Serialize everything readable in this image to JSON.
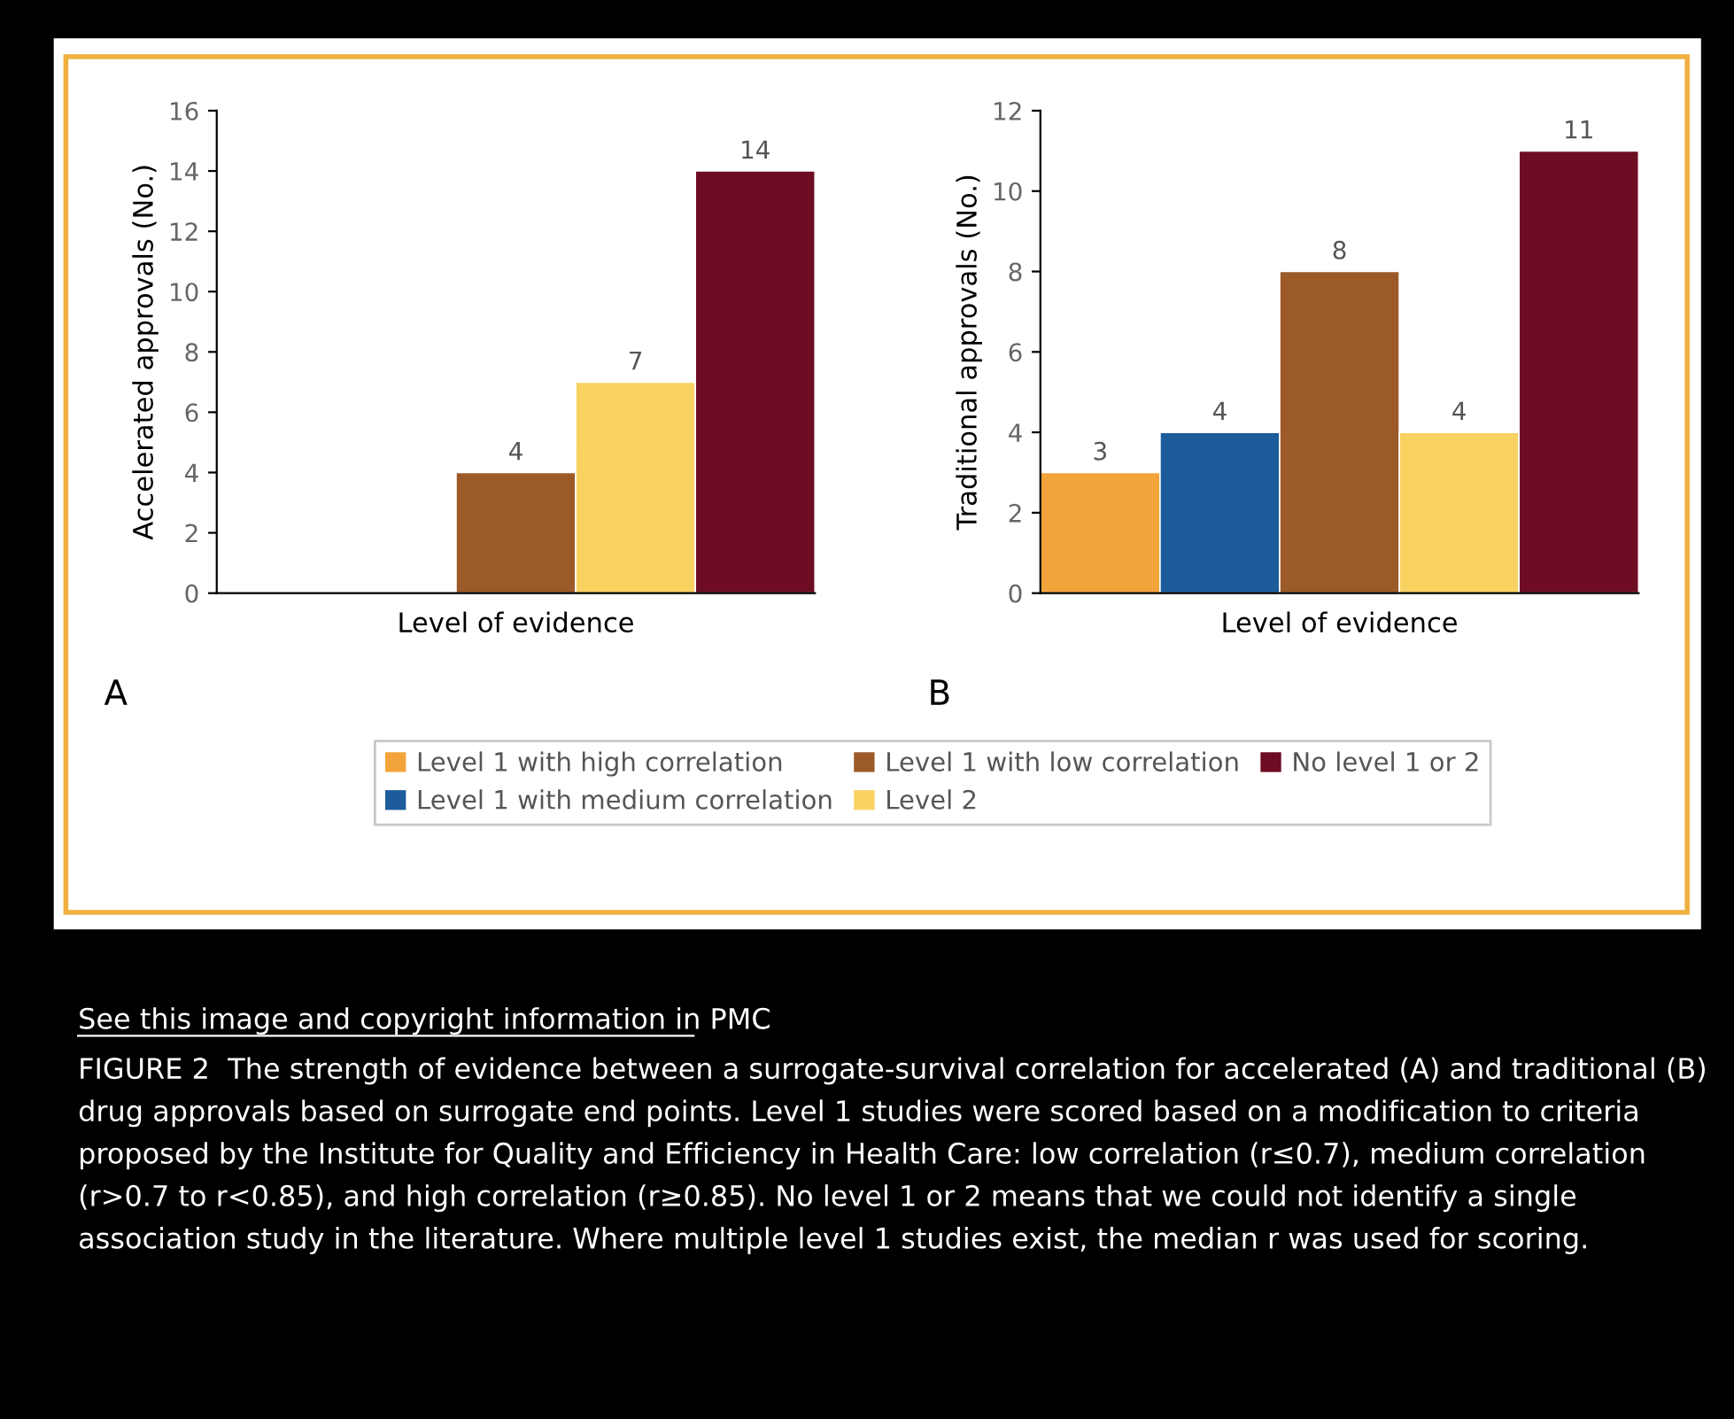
{
  "chart_data": [
    {
      "type": "bar",
      "ylabel": "Accelerated approvals (No.)",
      "xlabel": "Level of evidence",
      "categories": [
        null,
        null,
        null,
        null,
        null
      ],
      "ylim": [
        0,
        16
      ],
      "yticks": [
        0,
        2,
        4,
        6,
        8,
        10,
        12,
        14,
        16
      ],
      "data_labels": true,
      "legend": false,
      "grid": false,
      "annotations": [
        "A"
      ],
      "series": [
        {
          "color": "#9b5a28",
          "values": [
            null,
            null,
            4,
            null,
            null
          ]
        },
        {
          "color": "#f9d262",
          "values": [
            null,
            null,
            null,
            7,
            null
          ]
        },
        {
          "color": "#6d0c22",
          "values": [
            null,
            null,
            null,
            null,
            14
          ]
        }
      ]
    },
    {
      "type": "bar",
      "ylabel": "Traditional approvals (No.)",
      "xlabel": "Level of evidence",
      "categories": [
        null,
        null,
        null,
        null,
        null
      ],
      "ylim": [
        0,
        12
      ],
      "yticks": [
        0,
        2,
        4,
        6,
        8,
        10,
        12
      ],
      "data_labels": true,
      "legend": "bottom",
      "grid": false,
      "annotations": [
        "B",
        "See this image and copyright information in PMC",
        "FIGURE 2  The strength of evidence between a surrogate-survival correlation for accelerated (A) and traditional (B) drug approvals based on surrogate end points. Level 1 studies were scored based on a modification to criteria proposed by the Institute for Quality and Efficiency in Health Care: low correlation (r≤0.7), medium correlation (r>0.7 to r<0.85), and high correlation (r≥0.85). No level 1 or 2 means that we could not identify a single association study in the literature. Where multiple level 1 studies exist, the median r was used for scoring."
      ],
      "series": [
        {
          "name": "Level 1 with high correlation",
          "color": "#f2a33a",
          "values": [
            3,
            null,
            null,
            null,
            null
          ]
        },
        {
          "name": "Level 1 with medium correlation",
          "color": "#1c5c9c",
          "values": [
            null,
            4,
            null,
            null,
            null
          ]
        },
        {
          "name": "Level 1 with low correlation",
          "color": "#9b5a28",
          "values": [
            null,
            null,
            8,
            null,
            null
          ]
        },
        {
          "name": "Level 2",
          "color": "#f9d262",
          "values": [
            null,
            null,
            null,
            4,
            null
          ]
        },
        {
          "name": "No level 1 or 2",
          "color": "#6d0c22",
          "values": [
            null,
            null,
            null,
            null,
            11
          ]
        }
      ]
    }
  ]
}
